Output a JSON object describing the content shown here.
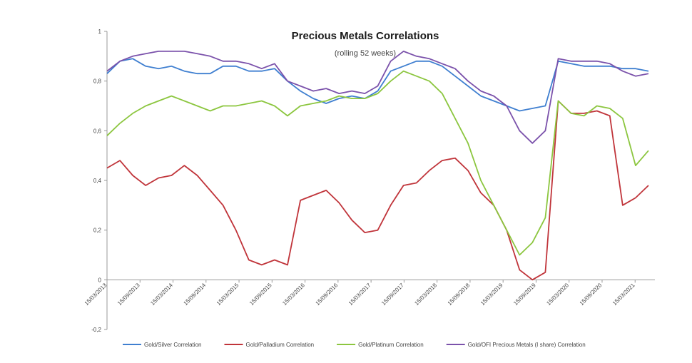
{
  "chart_data": {
    "type": "line",
    "title": "Precious Metals Correlations",
    "subtitle": "(rolling 52 weeks)",
    "xlabel": "",
    "ylabel": "",
    "ylim": [
      -0.2,
      1
    ],
    "y_ticks": [
      {
        "value": 1,
        "label": "1"
      },
      {
        "value": 0.8,
        "label": "0,8"
      },
      {
        "value": 0.6,
        "label": "0,6"
      },
      {
        "value": 0.4,
        "label": "0,4"
      },
      {
        "value": 0.2,
        "label": "0,2"
      },
      {
        "value": 0,
        "label": "0"
      },
      {
        "value": -0.2,
        "label": "-0,2"
      }
    ],
    "x_ticks": [
      "15/03/2013",
      "15/09/2013",
      "15/03/2014",
      "15/09/2014",
      "15/03/2015",
      "15/09/2015",
      "15/03/2016",
      "15/09/2016",
      "15/03/2017",
      "15/09/2017",
      "15/03/2018",
      "15/09/2018",
      "15/03/2019",
      "15/09/2019",
      "15/03/2020",
      "15/09/2020",
      "15/03/2021"
    ],
    "x": [
      2013.2,
      2013.4,
      2013.6,
      2013.8,
      2014.0,
      2014.2,
      2014.4,
      2014.6,
      2014.8,
      2015.0,
      2015.2,
      2015.4,
      2015.6,
      2015.8,
      2016.0,
      2016.2,
      2016.4,
      2016.6,
      2016.8,
      2017.0,
      2017.2,
      2017.4,
      2017.6,
      2017.8,
      2018.0,
      2018.2,
      2018.4,
      2018.6,
      2018.8,
      2019.0,
      2019.2,
      2019.4,
      2019.6,
      2019.8,
      2020.0,
      2020.2,
      2020.4,
      2020.6,
      2020.8,
      2021.0,
      2021.2,
      2021.4,
      2021.6
    ],
    "legend_position": "bottom",
    "grid": false,
    "series": [
      {
        "name": "Gold/Silver Correlation",
        "color": "#3f7fd0",
        "values": [
          0.83,
          0.88,
          0.89,
          0.86,
          0.85,
          0.86,
          0.84,
          0.83,
          0.83,
          0.86,
          0.86,
          0.84,
          0.84,
          0.85,
          0.8,
          0.76,
          0.73,
          0.71,
          0.73,
          0.74,
          0.73,
          0.76,
          0.84,
          0.86,
          0.88,
          0.88,
          0.86,
          0.82,
          0.78,
          0.74,
          0.72,
          0.7,
          0.68,
          0.69,
          0.7,
          0.88,
          0.87,
          0.86,
          0.86,
          0.86,
          0.85,
          0.85,
          0.84
        ]
      },
      {
        "name": "Gold/Palladium Correlation",
        "color": "#c0343a",
        "values": [
          0.45,
          0.48,
          0.42,
          0.38,
          0.41,
          0.42,
          0.46,
          0.42,
          0.36,
          0.3,
          0.2,
          0.08,
          0.06,
          0.08,
          0.06,
          0.32,
          0.34,
          0.36,
          0.31,
          0.24,
          0.19,
          0.2,
          0.3,
          0.38,
          0.39,
          0.44,
          0.48,
          0.49,
          0.44,
          0.35,
          0.3,
          0.2,
          0.04,
          0.0,
          0.03,
          0.72,
          0.67,
          0.67,
          0.68,
          0.66,
          0.3,
          0.33,
          0.38
        ]
      },
      {
        "name": "Gold/Platinum Correlation",
        "color": "#8cc63f",
        "values": [
          0.58,
          0.63,
          0.67,
          0.7,
          0.72,
          0.74,
          0.72,
          0.7,
          0.68,
          0.7,
          0.7,
          0.71,
          0.72,
          0.7,
          0.66,
          0.7,
          0.71,
          0.72,
          0.74,
          0.73,
          0.73,
          0.75,
          0.8,
          0.84,
          0.82,
          0.8,
          0.75,
          0.65,
          0.55,
          0.4,
          0.3,
          0.2,
          0.1,
          0.15,
          0.25,
          0.72,
          0.67,
          0.66,
          0.7,
          0.69,
          0.65,
          0.46,
          0.52
        ]
      },
      {
        "name": "Gold/OFI Precious Metals (I share) Correlation",
        "color": "#7b52ab",
        "values": [
          0.84,
          0.88,
          0.9,
          0.91,
          0.92,
          0.92,
          0.92,
          0.91,
          0.9,
          0.88,
          0.88,
          0.87,
          0.85,
          0.87,
          0.8,
          0.78,
          0.76,
          0.77,
          0.75,
          0.76,
          0.75,
          0.78,
          0.88,
          0.92,
          0.9,
          0.89,
          0.87,
          0.85,
          0.8,
          0.76,
          0.74,
          0.7,
          0.6,
          0.55,
          0.6,
          0.89,
          0.88,
          0.88,
          0.88,
          0.87,
          0.84,
          0.82,
          0.83
        ]
      }
    ]
  }
}
